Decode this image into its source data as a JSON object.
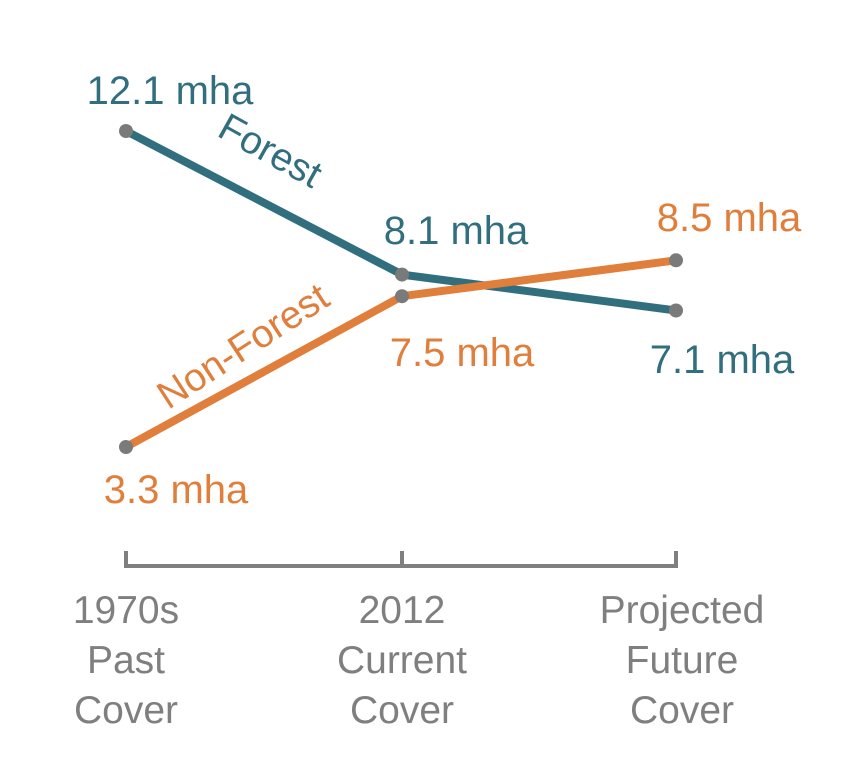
{
  "chart_data": {
    "type": "line",
    "categories": [
      [
        "1970s",
        "Past",
        "Cover"
      ],
      [
        "2012",
        "Current",
        "Cover"
      ],
      [
        "Projected",
        "Future",
        "Cover"
      ]
    ],
    "series": [
      {
        "name": "Forest",
        "color": "#316f7f",
        "values": [
          12.1,
          8.1,
          7.1
        ],
        "labels": [
          "12.1 mha",
          "8.1 mha",
          "7.1 mha"
        ]
      },
      {
        "name": "Non-Forest",
        "color": "#e07e3c",
        "values": [
          3.3,
          7.5,
          8.5
        ],
        "labels": [
          "3.3 mha",
          "7.5 mha",
          "8.5 mha"
        ]
      }
    ],
    "unit": "mha",
    "ylim": [
      3.3,
      12.1
    ],
    "grid": false,
    "legend": "none",
    "point_color": "#7a7a7a",
    "axis_color": "#7f7f7f"
  }
}
